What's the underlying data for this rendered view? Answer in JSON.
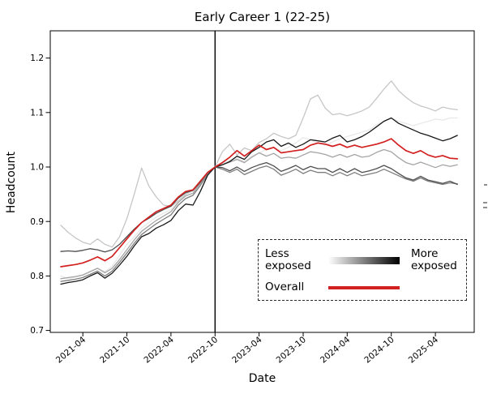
{
  "chart_data": {
    "type": "line",
    "title": "Early Career 1 (22-25)",
    "xlabel": "Date",
    "ylabel": "Headcount",
    "ylim": [
      0.7,
      1.25
    ],
    "grid": false,
    "y_ticks": [
      "0.7",
      "0.8",
      "0.9",
      "1.0",
      "1.1",
      "1.2"
    ],
    "x_tick_labels": [
      "2021-04",
      "2021-10",
      "2022-04",
      "2022-10",
      "2023-04",
      "2023-10",
      "2024-04",
      "2024-10",
      "2025-04"
    ],
    "cutoff_month": "2022-10",
    "cutoff_line_color": "#000000",
    "months": [
      "2021-01",
      "2021-02",
      "2021-03",
      "2021-04",
      "2021-05",
      "2021-06",
      "2021-07",
      "2021-08",
      "2021-09",
      "2021-10",
      "2021-11",
      "2021-12",
      "2022-01",
      "2022-02",
      "2022-03",
      "2022-04",
      "2022-05",
      "2022-06",
      "2022-07",
      "2022-08",
      "2022-09",
      "2022-10",
      "2022-11",
      "2022-12",
      "2023-01",
      "2023-02",
      "2023-03",
      "2023-04",
      "2023-05",
      "2023-06",
      "2023-07",
      "2023-08",
      "2023-09",
      "2023-10",
      "2023-11",
      "2023-12",
      "2024-01",
      "2024-02",
      "2024-03",
      "2024-04",
      "2024-05",
      "2024-06",
      "2024-07",
      "2024-08",
      "2024-09",
      "2024-10",
      "2024-11",
      "2024-12",
      "2025-01",
      "2025-02",
      "2025-03",
      "2025-04",
      "2025-05",
      "2025-06",
      "2025-07"
    ],
    "series": [
      {
        "name": "exposure-level-1-least-exposed",
        "color": "#e9e9e9",
        "width": 1.3,
        "values": [
          0.8,
          0.795,
          0.798,
          0.801,
          0.808,
          0.815,
          0.808,
          0.818,
          0.838,
          0.858,
          0.872,
          0.888,
          0.898,
          0.908,
          0.915,
          0.922,
          0.938,
          0.95,
          0.956,
          0.97,
          0.988,
          1.0,
          1.006,
          1.012,
          1.016,
          1.01,
          1.02,
          1.026,
          1.032,
          1.036,
          1.03,
          1.036,
          1.044,
          1.054,
          1.05,
          1.044,
          1.04,
          1.046,
          1.052,
          1.056,
          1.06,
          1.064,
          1.068,
          1.078,
          1.084,
          1.09,
          1.084,
          1.08,
          1.076,
          1.08,
          1.084,
          1.088,
          1.086,
          1.09,
          1.09
        ]
      },
      {
        "name": "exposure-level-2",
        "color": "#c6c6c6",
        "width": 1.3,
        "values": [
          0.893,
          0.88,
          0.87,
          0.862,
          0.858,
          0.868,
          0.858,
          0.853,
          0.872,
          0.905,
          0.95,
          0.998,
          0.965,
          0.945,
          0.93,
          0.928,
          0.938,
          0.95,
          0.958,
          0.972,
          0.988,
          1.0,
          1.028,
          1.042,
          1.022,
          1.035,
          1.03,
          1.045,
          1.052,
          1.062,
          1.056,
          1.052,
          1.058,
          1.09,
          1.125,
          1.132,
          1.108,
          1.096,
          1.098,
          1.094,
          1.098,
          1.103,
          1.11,
          1.126,
          1.143,
          1.158,
          1.14,
          1.128,
          1.118,
          1.112,
          1.108,
          1.103,
          1.11,
          1.107,
          1.105
        ]
      },
      {
        "name": "exposure-level-3",
        "color": "#a4a4a4",
        "width": 1.3,
        "values": [
          0.795,
          0.797,
          0.799,
          0.802,
          0.808,
          0.814,
          0.806,
          0.814,
          0.83,
          0.848,
          0.866,
          0.882,
          0.892,
          0.902,
          0.91,
          0.918,
          0.935,
          0.947,
          0.952,
          0.97,
          0.988,
          1.0,
          1.004,
          1.009,
          1.014,
          1.008,
          1.018,
          1.026,
          1.02,
          1.025,
          1.016,
          1.018,
          1.016,
          1.022,
          1.028,
          1.026,
          1.023,
          1.018,
          1.023,
          1.018,
          1.023,
          1.018,
          1.02,
          1.027,
          1.032,
          1.028,
          1.017,
          1.008,
          1.004,
          1.009,
          1.004,
          0.999,
          1.004,
          1.001,
          1.004
        ]
      },
      {
        "name": "exposure-level-4",
        "color": "#7d7d7d",
        "width": 1.3,
        "values": [
          0.79,
          0.792,
          0.794,
          0.797,
          0.803,
          0.809,
          0.8,
          0.809,
          0.825,
          0.842,
          0.86,
          0.876,
          0.886,
          0.896,
          0.904,
          0.912,
          0.93,
          0.942,
          0.948,
          0.966,
          0.986,
          1.0,
          0.996,
          0.99,
          0.996,
          0.986,
          0.992,
          0.998,
          1.002,
          0.996,
          0.985,
          0.99,
          0.996,
          0.988,
          0.994,
          0.99,
          0.99,
          0.984,
          0.99,
          0.984,
          0.99,
          0.984,
          0.987,
          0.99,
          0.996,
          0.99,
          0.984,
          0.978,
          0.974,
          0.98,
          0.974,
          0.971,
          0.968,
          0.971,
          0.969
        ]
      },
      {
        "name": "exposure-level-5",
        "color": "#4f4f4f",
        "width": 1.3,
        "values": [
          0.845,
          0.846,
          0.845,
          0.847,
          0.85,
          0.848,
          0.844,
          0.848,
          0.858,
          0.872,
          0.886,
          0.898,
          0.906,
          0.915,
          0.922,
          0.928,
          0.943,
          0.953,
          0.957,
          0.972,
          0.99,
          1.0,
          0.999,
          0.993,
          1.0,
          0.992,
          0.999,
          1.004,
          1.008,
          1.002,
          0.992,
          0.997,
          1.003,
          0.995,
          1.001,
          0.997,
          0.997,
          0.99,
          0.997,
          0.99,
          0.997,
          0.99,
          0.993,
          0.997,
          1.003,
          0.997,
          0.988,
          0.98,
          0.976,
          0.983,
          0.976,
          0.973,
          0.97,
          0.974,
          0.968
        ]
      },
      {
        "name": "exposure-level-6-most-exposed",
        "color": "#181818",
        "width": 1.3,
        "values": [
          0.785,
          0.788,
          0.79,
          0.793,
          0.8,
          0.806,
          0.796,
          0.805,
          0.82,
          0.836,
          0.855,
          0.872,
          0.878,
          0.888,
          0.894,
          0.902,
          0.92,
          0.932,
          0.93,
          0.955,
          0.985,
          1.0,
          1.004,
          1.01,
          1.02,
          1.014,
          1.028,
          1.036,
          1.046,
          1.05,
          1.038,
          1.044,
          1.036,
          1.042,
          1.05,
          1.048,
          1.046,
          1.053,
          1.058,
          1.046,
          1.05,
          1.056,
          1.064,
          1.074,
          1.084,
          1.09,
          1.08,
          1.074,
          1.068,
          1.062,
          1.058,
          1.053,
          1.048,
          1.052,
          1.058
        ]
      },
      {
        "name": "Overall",
        "color": "#d32020",
        "width": 1.7,
        "values": [
          0.817,
          0.819,
          0.821,
          0.824,
          0.829,
          0.835,
          0.828,
          0.836,
          0.852,
          0.868,
          0.884,
          0.898,
          0.908,
          0.918,
          0.924,
          0.93,
          0.945,
          0.955,
          0.958,
          0.974,
          0.99,
          1.0,
          1.008,
          1.018,
          1.03,
          1.02,
          1.03,
          1.04,
          1.032,
          1.036,
          1.026,
          1.028,
          1.03,
          1.032,
          1.04,
          1.044,
          1.042,
          1.038,
          1.042,
          1.036,
          1.04,
          1.036,
          1.039,
          1.042,
          1.046,
          1.052,
          1.04,
          1.03,
          1.025,
          1.03,
          1.022,
          1.018,
          1.021,
          1.016,
          1.015
        ]
      }
    ],
    "legend": {
      "position": "lower right",
      "less_label": "Less\nexposed",
      "more_label": "More\nexposed",
      "overall_label": "Overall",
      "gradient_colors": [
        "#ffffff",
        "#000000"
      ],
      "overall_color": "#d32020"
    }
  }
}
